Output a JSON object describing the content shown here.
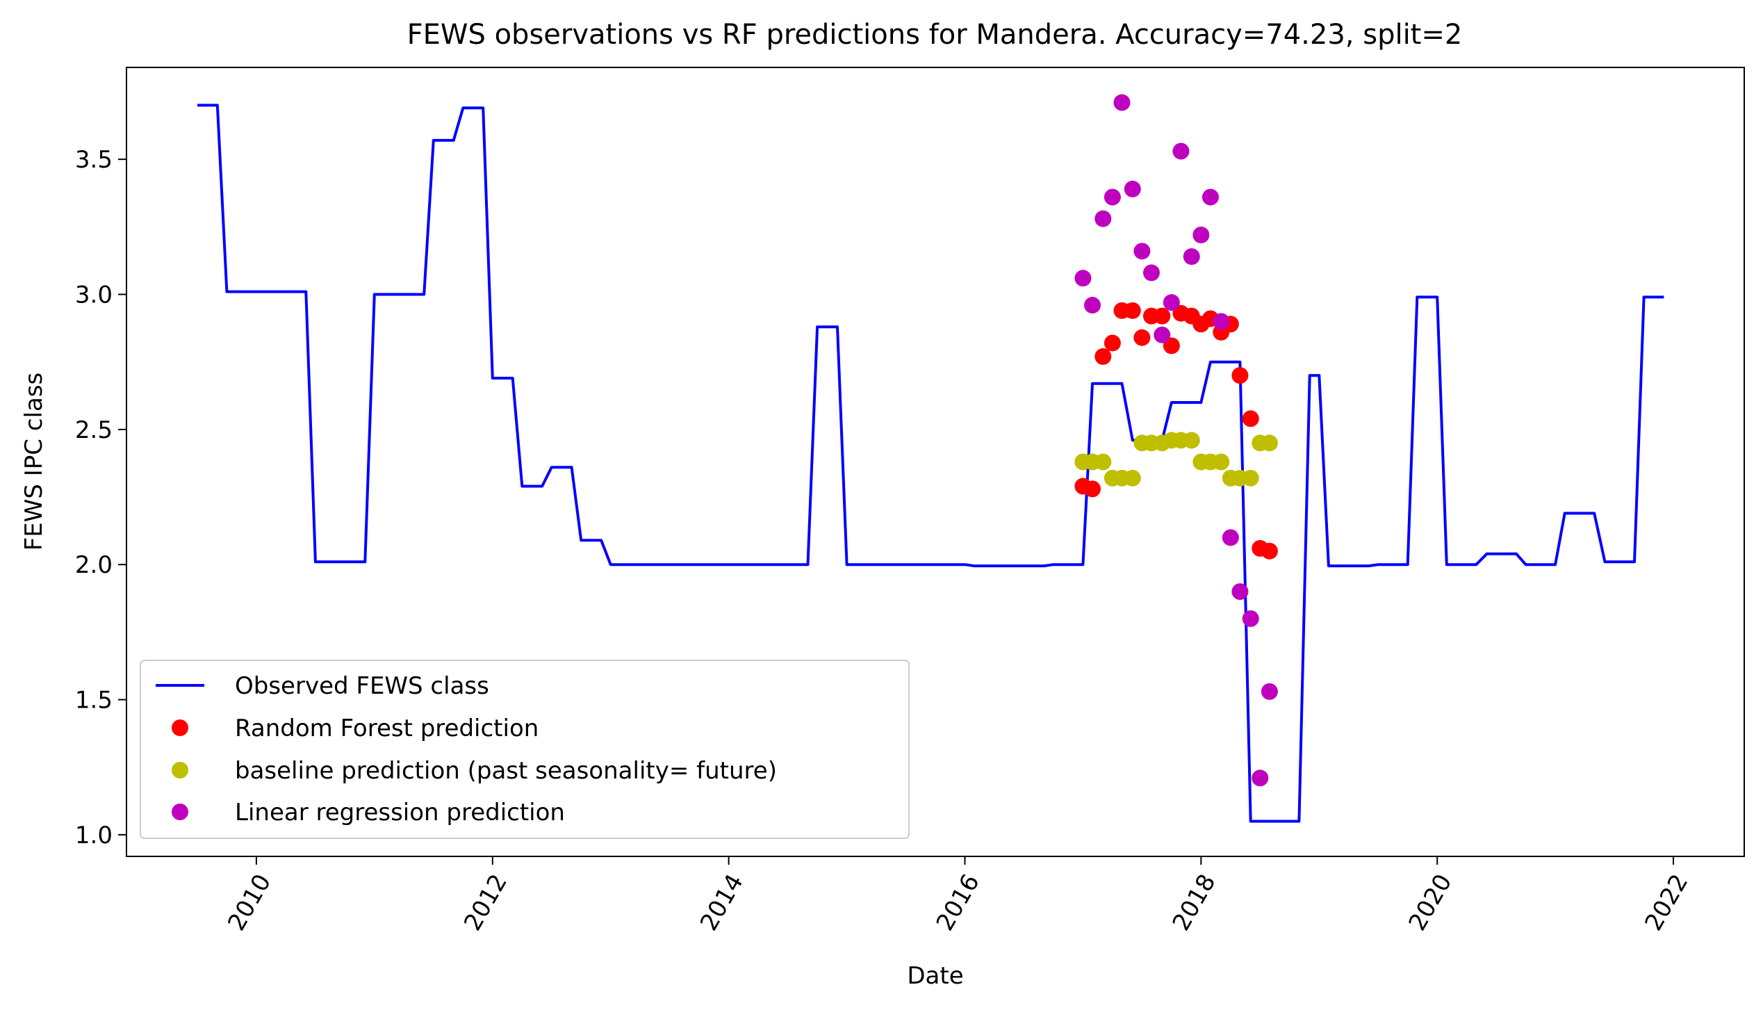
{
  "chart_data": {
    "type": "line",
    "title": "FEWS observations vs RF predictions for Mandera. Accuracy=74.23, split=2",
    "xlabel": "Date",
    "ylabel": "FEWS IPC class",
    "xlim": [
      2008.9,
      2022.6
    ],
    "ylim": [
      0.92,
      3.84
    ],
    "x_ticks": [
      2010,
      2012,
      2014,
      2016,
      2018,
      2020,
      2022
    ],
    "x_tick_labels": [
      "2010",
      "2012",
      "2014",
      "2016",
      "2018",
      "2020",
      "2022"
    ],
    "y_ticks": [
      1.0,
      1.5,
      2.0,
      2.5,
      3.0,
      3.5
    ],
    "y_tick_labels": [
      "1.0",
      "1.5",
      "2.0",
      "2.5",
      "3.0",
      "3.5"
    ],
    "grid": false,
    "legend_position": "lower-left",
    "series": [
      {
        "name": "Observed FEWS class",
        "kind": "line",
        "color": "#0000ff",
        "x": [
          2009.5,
          2009.67,
          2009.75,
          2010.42,
          2010.5,
          2010.92,
          2011.0,
          2011.42,
          2011.5,
          2011.67,
          2011.75,
          2011.92,
          2012.0,
          2012.17,
          2012.25,
          2012.42,
          2012.5,
          2012.67,
          2012.75,
          2012.92,
          2013.0,
          2014.67,
          2014.75,
          2014.92,
          2015.0,
          2016.0,
          2016.08,
          2016.67,
          2016.75,
          2017.0,
          2017.08,
          2017.33,
          2017.42,
          2017.67,
          2017.75,
          2018.0,
          2018.08,
          2018.33,
          2018.42,
          2018.83,
          2018.92,
          2019.0,
          2019.08,
          2019.42,
          2019.5,
          2019.75,
          2019.83,
          2020.0,
          2020.08,
          2020.33,
          2020.42,
          2020.67,
          2020.75,
          2021.0,
          2021.08,
          2021.33,
          2021.42,
          2021.67,
          2021.75,
          2021.92
        ],
        "y": [
          3.7,
          3.7,
          3.01,
          3.01,
          2.01,
          2.01,
          3.0,
          3.0,
          3.57,
          3.57,
          3.69,
          3.69,
          2.69,
          2.69,
          2.29,
          2.29,
          2.36,
          2.36,
          2.09,
          2.09,
          2.0,
          2.0,
          2.88,
          2.88,
          2.0,
          2.0,
          1.995,
          1.995,
          2.0,
          2.0,
          2.67,
          2.67,
          2.46,
          2.46,
          2.6,
          2.6,
          2.75,
          2.75,
          1.05,
          1.05,
          2.7,
          2.7,
          1.995,
          1.995,
          2.0,
          2.0,
          2.99,
          2.99,
          2.0,
          2.0,
          2.04,
          2.04,
          2.0,
          2.0,
          2.19,
          2.19,
          2.01,
          2.01,
          2.99,
          2.99
        ]
      },
      {
        "name": "Random Forest prediction",
        "kind": "scatter",
        "color": "#ff0000",
        "x": [
          2017.0,
          2017.08,
          2017.17,
          2017.25,
          2017.33,
          2017.42,
          2017.5,
          2017.58,
          2017.67,
          2017.75,
          2017.83,
          2017.92,
          2018.0,
          2018.08,
          2018.17,
          2018.25,
          2018.33,
          2018.42,
          2018.5,
          2018.58
        ],
        "y": [
          2.29,
          2.28,
          2.77,
          2.82,
          2.94,
          2.94,
          2.84,
          2.92,
          2.92,
          2.81,
          2.93,
          2.92,
          2.89,
          2.91,
          2.86,
          2.89,
          2.7,
          2.54,
          2.06,
          2.05
        ]
      },
      {
        "name": "baseline prediction (past seasonality= future)",
        "kind": "scatter",
        "color": "#bfbf00",
        "x": [
          2017.0,
          2017.08,
          2017.17,
          2017.25,
          2017.33,
          2017.42,
          2017.5,
          2017.58,
          2017.67,
          2017.75,
          2017.83,
          2017.92,
          2018.0,
          2018.08,
          2018.17,
          2018.25,
          2018.33,
          2018.42,
          2018.5,
          2018.58
        ],
        "y": [
          2.38,
          2.38,
          2.38,
          2.32,
          2.32,
          2.32,
          2.45,
          2.45,
          2.45,
          2.46,
          2.46,
          2.46,
          2.38,
          2.38,
          2.38,
          2.32,
          2.32,
          2.32,
          2.45,
          2.45
        ]
      },
      {
        "name": "Linear regression prediction",
        "kind": "scatter",
        "color": "#bf00bf",
        "x": [
          2017.0,
          2017.08,
          2017.17,
          2017.25,
          2017.33,
          2017.42,
          2017.5,
          2017.58,
          2017.67,
          2017.75,
          2017.83,
          2017.92,
          2018.0,
          2018.08,
          2018.17,
          2018.25,
          2018.33,
          2018.42,
          2018.5,
          2018.58
        ],
        "y": [
          3.06,
          2.96,
          3.28,
          3.36,
          3.71,
          3.39,
          3.16,
          3.08,
          2.85,
          2.97,
          3.53,
          3.14,
          3.22,
          3.36,
          2.9,
          2.1,
          1.9,
          1.8,
          1.21,
          1.53
        ]
      }
    ]
  }
}
